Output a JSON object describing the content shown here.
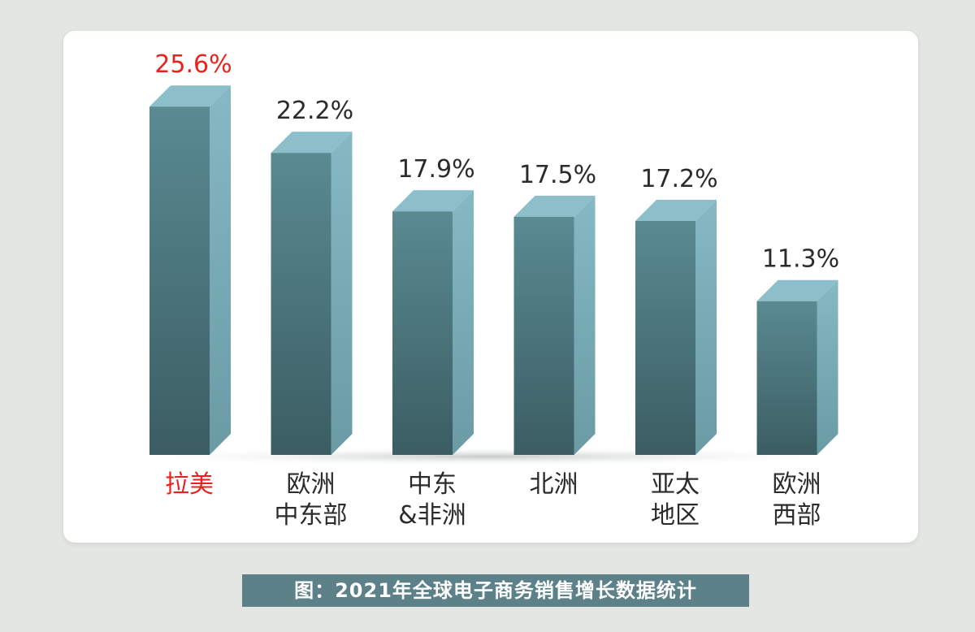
{
  "chart_data": {
    "type": "bar",
    "categories": [
      "拉美",
      "欧洲\n中东部",
      "中东\n&非洲",
      "北洲",
      "亚太\n地区",
      "欧洲\n西部"
    ],
    "values": [
      25.6,
      22.2,
      17.9,
      17.5,
      17.2,
      11.3
    ],
    "value_labels": [
      "25.6%",
      "22.2%",
      "17.9%",
      "17.5%",
      "17.2%",
      "11.3%"
    ],
    "unit": "%",
    "highlight_index": 0,
    "colors": {
      "highlight": "#e8231f",
      "text": "#2b2b2b",
      "bar_front": "#4f7e86",
      "bar_front_dark": "#3d6168",
      "bar_side": "#78aab5",
      "bar_top": "#8cbfca"
    },
    "ylim": [
      0,
      26
    ],
    "grid": false,
    "legend": "none"
  },
  "caption": "图：2021年全球电子商务销售增长数据统计"
}
